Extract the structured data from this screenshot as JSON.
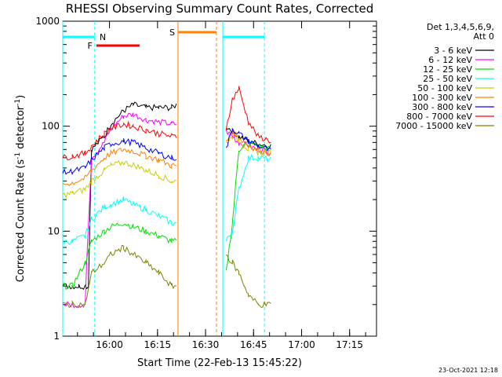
{
  "chart_data": {
    "type": "line",
    "title": "RHESSI Observing Summary Count Rates, Corrected",
    "xlabel": "Start Time (22-Feb-13 15:45:22)",
    "ylabel": "Corrected Count Rate (s⁻¹ detector⁻¹)",
    "ylabel_main": "Corrected Count Rate (s",
    "ylabel_sup1": "-1",
    "ylabel_mid": " detector",
    "ylabel_sup2": "-1",
    "ylabel_end": ")",
    "footer": "23-Oct-2021 12:18",
    "legend_header": [
      "Det 1,3,4,5,6,9,",
      "Att 0"
    ],
    "x_ticks": [
      "16:00",
      "16:15",
      "16:30",
      "16:45",
      "17:00",
      "17:15"
    ],
    "y_ticks": [
      "1",
      "10",
      "100",
      "1000"
    ],
    "x_range_min": [
      0,
      98
    ],
    "yscale": "log",
    "ylim": [
      1,
      1000
    ],
    "grid": false,
    "legend_position": "right",
    "series": [
      {
        "name": "3 - 6 keV",
        "color": "#000000",
        "values": [
          [
            0,
            3
          ],
          [
            3,
            3
          ],
          [
            5,
            3
          ],
          [
            8,
            3
          ],
          [
            9,
            60
          ],
          [
            13,
            80
          ],
          [
            15,
            105
          ],
          [
            19,
            140
          ],
          [
            22,
            160
          ],
          [
            26,
            150
          ],
          [
            30,
            150
          ],
          [
            34,
            150
          ],
          [
            35.5,
            160
          ],
          [
            51,
            100
          ],
          [
            53,
            90
          ],
          [
            55,
            80
          ],
          [
            58,
            72
          ],
          [
            61,
            68
          ],
          [
            65,
            65
          ]
        ]
      },
      {
        "name": "6 - 12 keV",
        "color": "#ff00ff",
        "values": [
          [
            0,
            2
          ],
          [
            3,
            2
          ],
          [
            7,
            2
          ],
          [
            8,
            12
          ],
          [
            9,
            50
          ],
          [
            13,
            70
          ],
          [
            15,
            95
          ],
          [
            19,
            125
          ],
          [
            22,
            130
          ],
          [
            26,
            115
          ],
          [
            30,
            110
          ],
          [
            34,
            105
          ],
          [
            35.5,
            105
          ],
          [
            51,
            90
          ],
          [
            53,
            80
          ],
          [
            55,
            70
          ],
          [
            58,
            65
          ],
          [
            61,
            60
          ],
          [
            65,
            57
          ]
        ]
      },
      {
        "name": "12 - 25 keV",
        "color": "#00dd00",
        "values": [
          [
            0,
            3
          ],
          [
            3,
            3
          ],
          [
            7,
            5
          ],
          [
            9,
            8
          ],
          [
            13,
            10
          ],
          [
            15,
            11
          ],
          [
            19,
            12
          ],
          [
            22,
            11
          ],
          [
            26,
            10
          ],
          [
            30,
            9
          ],
          [
            34,
            8
          ],
          [
            35.5,
            8
          ],
          [
            51,
            4
          ],
          [
            53,
            12
          ],
          [
            55,
            60
          ],
          [
            58,
            70
          ],
          [
            61,
            65
          ],
          [
            65,
            60
          ]
        ]
      },
      {
        "name": "25 - 50 keV",
        "color": "#00ffff",
        "values": [
          [
            0,
            8
          ],
          [
            3,
            8
          ],
          [
            7,
            9
          ],
          [
            9,
            13
          ],
          [
            13,
            17
          ],
          [
            15,
            18
          ],
          [
            19,
            20
          ],
          [
            22,
            18
          ],
          [
            26,
            16
          ],
          [
            30,
            14
          ],
          [
            34,
            12
          ],
          [
            35.5,
            12
          ],
          [
            51,
            8
          ],
          [
            53,
            10
          ],
          [
            55,
            25
          ],
          [
            58,
            50
          ],
          [
            61,
            50
          ],
          [
            65,
            48
          ]
        ]
      },
      {
        "name": "50 - 100 keV",
        "color": "#cccc00",
        "values": [
          [
            0,
            22
          ],
          [
            3,
            23
          ],
          [
            7,
            25
          ],
          [
            9,
            30
          ],
          [
            13,
            38
          ],
          [
            15,
            42
          ],
          [
            19,
            45
          ],
          [
            22,
            43
          ],
          [
            26,
            38
          ],
          [
            30,
            34
          ],
          [
            34,
            30
          ],
          [
            35.5,
            30
          ],
          [
            51,
            70
          ],
          [
            53,
            80
          ],
          [
            55,
            75
          ],
          [
            58,
            60
          ],
          [
            61,
            56
          ],
          [
            65,
            55
          ]
        ]
      },
      {
        "name": "100 - 300 keV",
        "color": "#ff8000",
        "values": [
          [
            0,
            28
          ],
          [
            3,
            29
          ],
          [
            7,
            32
          ],
          [
            9,
            38
          ],
          [
            13,
            50
          ],
          [
            15,
            55
          ],
          [
            19,
            60
          ],
          [
            22,
            58
          ],
          [
            26,
            52
          ],
          [
            30,
            48
          ],
          [
            34,
            42
          ],
          [
            35.5,
            42
          ],
          [
            51,
            70
          ],
          [
            53,
            90
          ],
          [
            55,
            78
          ],
          [
            58,
            65
          ],
          [
            61,
            60
          ],
          [
            65,
            55
          ]
        ]
      },
      {
        "name": "300 - 800 keV",
        "color": "#0000ff",
        "values": [
          [
            0,
            36
          ],
          [
            3,
            37
          ],
          [
            7,
            40
          ],
          [
            9,
            48
          ],
          [
            13,
            62
          ],
          [
            15,
            68
          ],
          [
            19,
            72
          ],
          [
            22,
            70
          ],
          [
            26,
            62
          ],
          [
            30,
            55
          ],
          [
            34,
            50
          ],
          [
            35.5,
            50
          ],
          [
            51,
            60
          ],
          [
            53,
            95
          ],
          [
            55,
            85
          ],
          [
            58,
            72
          ],
          [
            61,
            65
          ],
          [
            65,
            58
          ]
        ]
      },
      {
        "name": "800 - 7000 keV",
        "color": "#ff0000",
        "values": [
          [
            0,
            50
          ],
          [
            3,
            52
          ],
          [
            7,
            55
          ],
          [
            9,
            65
          ],
          [
            13,
            85
          ],
          [
            15,
            95
          ],
          [
            19,
            105
          ],
          [
            22,
            100
          ],
          [
            26,
            92
          ],
          [
            30,
            85
          ],
          [
            34,
            80
          ],
          [
            35.5,
            80
          ],
          [
            51,
            95
          ],
          [
            53,
            180
          ],
          [
            55,
            230
          ],
          [
            58,
            110
          ],
          [
            61,
            80
          ],
          [
            65,
            72
          ]
        ]
      },
      {
        "name": "7000 - 15000 keV",
        "color": "#808000",
        "values": [
          [
            0,
            2
          ],
          [
            3,
            2
          ],
          [
            7,
            2
          ],
          [
            9,
            4
          ],
          [
            13,
            5
          ],
          [
            15,
            6
          ],
          [
            19,
            7
          ],
          [
            22,
            6
          ],
          [
            26,
            5
          ],
          [
            30,
            4
          ],
          [
            34,
            3
          ],
          [
            35.5,
            3
          ],
          [
            51,
            6
          ],
          [
            53,
            5
          ],
          [
            55,
            4
          ],
          [
            58,
            2.5
          ],
          [
            61,
            2
          ],
          [
            65,
            2
          ]
        ]
      }
    ],
    "annotations": [
      {
        "label": "N",
        "color": "#00ffff",
        "x_start": 0,
        "x_end": 10
      },
      {
        "label": "F",
        "color": "#ff0000",
        "x_start": 10.5,
        "x_end": 24
      },
      {
        "label": "S",
        "color": "#ff8000",
        "x_start": 36,
        "x_end": 48
      },
      {
        "label": "",
        "color": "#00ffff",
        "x_start": 50,
        "x_end": 63
      }
    ]
  }
}
